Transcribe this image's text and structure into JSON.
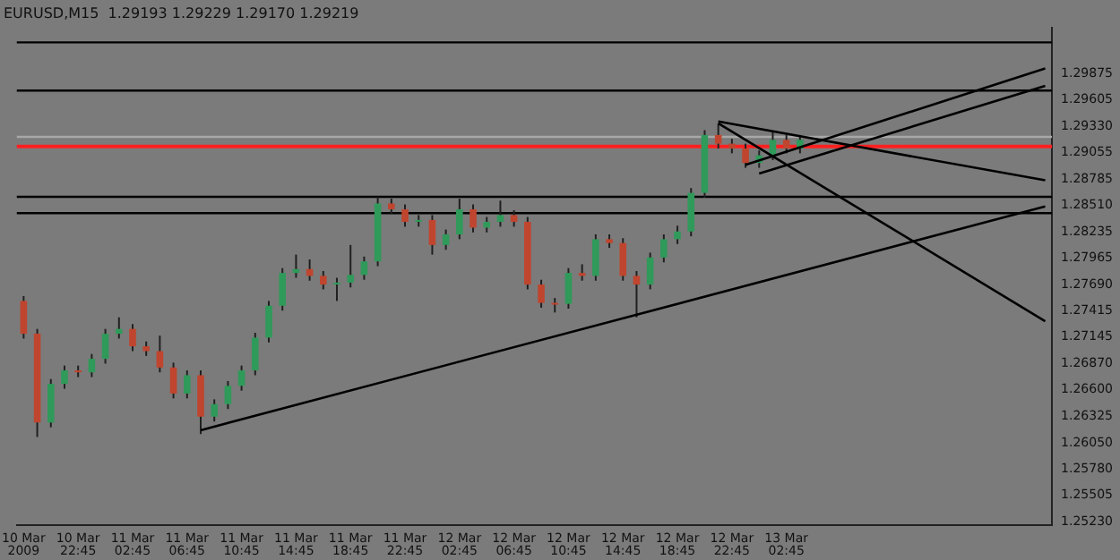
{
  "chart_data": {
    "type": "candlestick",
    "title": "EURUSD,M15  1.29193 1.29229 1.29170 1.29219",
    "categories": [
      "10 Mar 2009",
      null,
      null,
      null,
      "10 Mar 22:45",
      null,
      null,
      null,
      "11 Mar 02:45",
      null,
      null,
      null,
      "11 Mar 06:45",
      null,
      null,
      null,
      "11 Mar 10:45",
      null,
      null,
      null,
      "11 Mar 14:45",
      null,
      null,
      null,
      "11 Mar 18:45",
      null,
      null,
      null,
      "11 Mar 22:45",
      null,
      null,
      null,
      "12 Mar 02:45",
      null,
      null,
      null,
      "12 Mar 06:45",
      null,
      null,
      null,
      "12 Mar 10:45",
      null,
      null,
      null,
      "12 Mar 14:45",
      null,
      null,
      null,
      "12 Mar 18:45",
      null,
      null,
      null,
      "12 Mar 22:45",
      null,
      null,
      null,
      "13 Mar 02:45",
      null,
      null,
      null,
      null,
      null,
      null,
      null,
      null,
      null,
      null,
      null,
      null,
      null,
      null,
      null,
      null,
      null,
      null,
      null
    ],
    "ohlc": [
      [
        1.2752,
        1.2757,
        1.2713,
        1.2718
      ],
      [
        1.2718,
        1.2723,
        1.2611,
        1.2626
      ],
      [
        1.2626,
        1.2671,
        1.2621,
        1.2666
      ],
      [
        1.2666,
        1.2685,
        1.2661,
        1.268
      ],
      [
        1.268,
        1.2685,
        1.2673,
        1.2678
      ],
      [
        1.2678,
        1.2697,
        1.2673,
        1.2692
      ],
      [
        1.2692,
        1.2723,
        1.2687,
        1.2718
      ],
      [
        1.2718,
        1.2735,
        1.2713,
        1.2723
      ],
      [
        1.2723,
        1.2728,
        1.27,
        1.2705
      ],
      [
        1.2705,
        1.271,
        1.2695,
        1.27
      ],
      [
        1.27,
        1.2716,
        1.2678,
        1.2683
      ],
      [
        1.2683,
        1.2688,
        1.2651,
        1.2656
      ],
      [
        1.2656,
        1.268,
        1.2651,
        1.2675
      ],
      [
        1.2675,
        1.268,
        1.2614,
        1.2632
      ],
      [
        1.2632,
        1.265,
        1.2627,
        1.2645
      ],
      [
        1.2645,
        1.2669,
        1.264,
        1.2664
      ],
      [
        1.2664,
        1.2685,
        1.2659,
        1.268
      ],
      [
        1.268,
        1.2719,
        1.2675,
        1.2714
      ],
      [
        1.2714,
        1.2752,
        1.2709,
        1.2747
      ],
      [
        1.2747,
        1.2786,
        1.2742,
        1.2781
      ],
      [
        1.2781,
        1.28,
        1.2776,
        1.2785
      ],
      [
        1.2785,
        1.2795,
        1.2773,
        1.2778
      ],
      [
        1.2778,
        1.2783,
        1.2764,
        1.2769
      ],
      [
        1.2769,
        1.2776,
        1.2752,
        1.2771
      ],
      [
        1.2771,
        1.281,
        1.2766,
        1.2779
      ],
      [
        1.2779,
        1.2798,
        1.2774,
        1.2793
      ],
      [
        1.2793,
        1.286,
        1.2788,
        1.2853
      ],
      [
        1.2853,
        1.2858,
        1.2842,
        1.2847
      ],
      [
        1.2847,
        1.2852,
        1.2829,
        1.2834
      ],
      [
        1.2834,
        1.2841,
        1.2829,
        1.2836
      ],
      [
        1.2836,
        1.2841,
        1.28,
        1.281
      ],
      [
        1.281,
        1.2826,
        1.2805,
        1.2821
      ],
      [
        1.2821,
        1.2858,
        1.2816,
        1.2847
      ],
      [
        1.2847,
        1.2852,
        1.2823,
        1.2828
      ],
      [
        1.2828,
        1.2839,
        1.2823,
        1.2834
      ],
      [
        1.2834,
        1.2856,
        1.2829,
        1.2841
      ],
      [
        1.2841,
        1.2846,
        1.2829,
        1.2834
      ],
      [
        1.2834,
        1.2839,
        1.2764,
        1.2769
      ],
      [
        1.2769,
        1.2774,
        1.2745,
        1.275
      ],
      [
        1.275,
        1.2755,
        1.274,
        1.2749
      ],
      [
        1.2749,
        1.2786,
        1.2744,
        1.2781
      ],
      [
        1.2781,
        1.279,
        1.2773,
        1.2778
      ],
      [
        1.2778,
        1.2821,
        1.2773,
        1.2816
      ],
      [
        1.2816,
        1.2821,
        1.2807,
        1.2812
      ],
      [
        1.2812,
        1.2817,
        1.2773,
        1.2778
      ],
      [
        1.2778,
        1.2783,
        1.2735,
        1.2769
      ],
      [
        1.2769,
        1.2802,
        1.2764,
        1.2797
      ],
      [
        1.2797,
        1.2821,
        1.2792,
        1.2816
      ],
      [
        1.2816,
        1.283,
        1.2811,
        1.2824
      ],
      [
        1.2824,
        1.2869,
        1.2819,
        1.2864
      ],
      [
        1.2864,
        1.2929,
        1.2859,
        1.2924
      ],
      [
        1.2924,
        1.2936,
        1.291,
        1.2915
      ],
      [
        1.2915,
        1.292,
        1.2905,
        1.291
      ],
      [
        1.291,
        1.2915,
        1.289,
        1.2895
      ],
      [
        1.2895,
        1.2908,
        1.289,
        1.2903
      ],
      [
        1.2903,
        1.2927,
        1.2898,
        1.2919
      ],
      [
        1.2919,
        1.2924,
        1.2905,
        1.291
      ],
      [
        1.291,
        1.2924,
        1.2905,
        1.2919
      ],
      null,
      null,
      null,
      null,
      null,
      null,
      null,
      null,
      null,
      null,
      null,
      null,
      null,
      null,
      null,
      null,
      null,
      null
    ],
    "series": [
      {
        "type": "line",
        "color": "#000000",
        "values": [
          null,
          null,
          null,
          null,
          null,
          null,
          null,
          null,
          null,
          null,
          null,
          null,
          null,
          1.2618,
          null,
          null,
          null,
          null,
          null,
          null,
          null,
          null,
          null,
          null,
          null,
          null,
          null,
          null,
          null,
          null,
          null,
          null,
          null,
          null,
          null,
          null,
          null,
          null,
          null,
          null,
          null,
          null,
          null,
          null,
          null,
          null,
          null,
          null,
          null,
          null,
          null,
          null,
          null,
          null,
          null,
          null,
          null,
          null,
          null,
          null,
          null,
          null,
          null,
          null,
          null,
          null,
          null,
          null,
          null,
          null,
          null,
          null,
          null,
          null,
          null,
          1.285
        ]
      },
      {
        "type": "line",
        "color": "#000000",
        "values": [
          null,
          null,
          null,
          null,
          null,
          null,
          null,
          null,
          null,
          null,
          null,
          null,
          null,
          null,
          null,
          null,
          null,
          null,
          null,
          null,
          null,
          null,
          null,
          null,
          null,
          null,
          null,
          null,
          null,
          null,
          null,
          null,
          null,
          null,
          null,
          null,
          null,
          null,
          null,
          null,
          null,
          null,
          null,
          null,
          null,
          null,
          null,
          null,
          null,
          null,
          null,
          1.2936,
          null,
          null,
          null,
          null,
          null,
          null,
          null,
          null,
          null,
          null,
          null,
          null,
          null,
          null,
          null,
          null,
          null,
          null,
          null,
          null,
          null,
          null,
          null,
          1.2731
        ]
      },
      {
        "type": "line",
        "color": "#000000",
        "values": [
          null,
          null,
          null,
          null,
          null,
          null,
          null,
          null,
          null,
          null,
          null,
          null,
          null,
          null,
          null,
          null,
          null,
          null,
          null,
          null,
          null,
          null,
          null,
          null,
          null,
          null,
          null,
          null,
          null,
          null,
          null,
          null,
          null,
          null,
          null,
          null,
          null,
          null,
          null,
          null,
          null,
          null,
          null,
          null,
          null,
          null,
          null,
          null,
          null,
          null,
          null,
          1.2938,
          null,
          null,
          null,
          null,
          null,
          null,
          null,
          null,
          null,
          null,
          null,
          null,
          null,
          null,
          null,
          null,
          null,
          null,
          null,
          null,
          null,
          null,
          null,
          1.2877
        ]
      },
      {
        "type": "line",
        "color": "#000000",
        "values": [
          null,
          null,
          null,
          null,
          null,
          null,
          null,
          null,
          null,
          null,
          null,
          null,
          null,
          null,
          null,
          null,
          null,
          null,
          null,
          null,
          null,
          null,
          null,
          null,
          null,
          null,
          null,
          null,
          null,
          null,
          null,
          null,
          null,
          null,
          null,
          null,
          null,
          null,
          null,
          null,
          null,
          null,
          null,
          null,
          null,
          null,
          null,
          null,
          null,
          null,
          null,
          null,
          null,
          1.2893,
          null,
          null,
          null,
          null,
          null,
          null,
          null,
          null,
          null,
          null,
          null,
          null,
          null,
          null,
          null,
          null,
          null,
          null,
          null,
          null,
          null,
          1.2993
        ]
      },
      {
        "type": "line",
        "color": "#000000",
        "values": [
          null,
          null,
          null,
          null,
          null,
          null,
          null,
          null,
          null,
          null,
          null,
          null,
          null,
          null,
          null,
          null,
          null,
          null,
          null,
          null,
          null,
          null,
          null,
          null,
          null,
          null,
          null,
          null,
          null,
          null,
          null,
          null,
          null,
          null,
          null,
          null,
          null,
          null,
          null,
          null,
          null,
          null,
          null,
          null,
          null,
          null,
          null,
          null,
          null,
          null,
          null,
          null,
          null,
          null,
          1.2884,
          null,
          null,
          null,
          null,
          null,
          null,
          null,
          null,
          null,
          null,
          null,
          null,
          null,
          null,
          null,
          null,
          null,
          null,
          null,
          null,
          1.2975
        ]
      }
    ],
    "ref_lines": [
      {
        "axis": "y",
        "value": 1.302,
        "color": "#000000"
      },
      {
        "axis": "y",
        "value": 1.297,
        "color": "#000000"
      },
      {
        "axis": "y",
        "value": 1.2922,
        "color": "#a8a8a8"
      },
      {
        "axis": "y",
        "value": 1.2912,
        "color": "#ff2020"
      },
      {
        "axis": "y",
        "value": 1.286,
        "color": "#000000"
      },
      {
        "axis": "y",
        "value": 1.2843,
        "color": "#000000"
      }
    ],
    "ylim": [
      1.252,
      1.3035
    ],
    "yticks": [
      {
        "value": 1.2523,
        "label": "1.25230"
      },
      {
        "value": 1.25505,
        "label": "1.25505"
      },
      {
        "value": 1.2578,
        "label": "1.25780"
      },
      {
        "value": 1.2605,
        "label": "1.26050"
      },
      {
        "value": 1.26325,
        "label": "1.26325"
      },
      {
        "value": 1.266,
        "label": "1.26600"
      },
      {
        "value": 1.2687,
        "label": "1.26870"
      },
      {
        "value": 1.27145,
        "label": "1.27145"
      },
      {
        "value": 1.27415,
        "label": "1.27415"
      },
      {
        "value": 1.2769,
        "label": "1.27690"
      },
      {
        "value": 1.27965,
        "label": "1.27965"
      },
      {
        "value": 1.28235,
        "label": "1.28235"
      },
      {
        "value": 1.2851,
        "label": "1.28510"
      },
      {
        "value": 1.28785,
        "label": "1.28785"
      },
      {
        "value": 1.29055,
        "label": "1.29055"
      },
      {
        "value": 1.2933,
        "label": "1.29330"
      },
      {
        "value": 1.29605,
        "label": "1.29605"
      },
      {
        "value": 1.29875,
        "label": "1.29875"
      }
    ]
  }
}
